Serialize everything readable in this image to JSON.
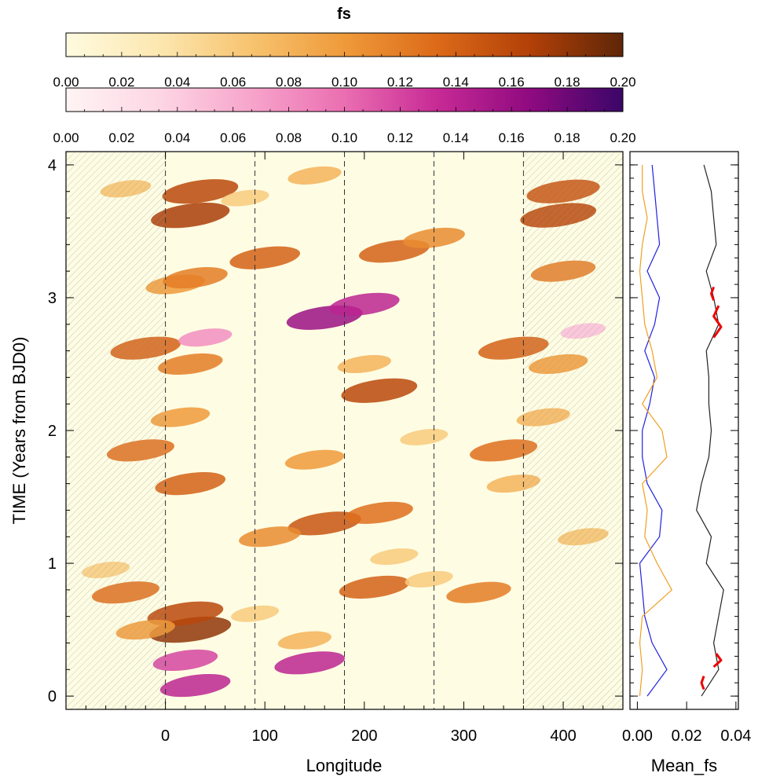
{
  "colorbars": [
    {
      "title": "fs",
      "ticks": [
        "0.00",
        "0.02",
        "0.04",
        "0.06",
        "0.08",
        "0.10",
        "0.12",
        "0.14",
        "0.16",
        "0.18",
        "0.20"
      ],
      "range": [
        0,
        0.2
      ],
      "stops": [
        "#fffbe0",
        "#fce7b0",
        "#f7c36f",
        "#ef9a3a",
        "#dc6a19",
        "#b24008",
        "#5e2608"
      ]
    },
    {
      "title": "",
      "ticks": [
        "0.00",
        "0.02",
        "0.04",
        "0.06",
        "0.08",
        "0.10",
        "0.12",
        "0.14",
        "0.16",
        "0.18",
        "0.20"
      ],
      "range": [
        0,
        0.2
      ],
      "stops": [
        "#fff4f4",
        "#fdd6e4",
        "#f7a4cb",
        "#ea6eb1",
        "#c72a95",
        "#8f0a80",
        "#3a0668"
      ]
    }
  ],
  "chart_data": [
    {
      "type": "heatmap",
      "title": "fs",
      "xlabel": "Longitude",
      "ylabel": "TIME (Years from BJD0)",
      "xlim": [
        -100,
        460
      ],
      "ylim": [
        -0.1,
        4.1
      ],
      "xticks": [
        "0",
        "100",
        "200",
        "300",
        "400"
      ],
      "yticks": [
        "0",
        "1",
        "2",
        "3",
        "4"
      ],
      "xtick_values": [
        0,
        100,
        200,
        300,
        400
      ],
      "ytick_values": [
        0,
        1,
        2,
        3,
        4
      ],
      "dashed_lines_x": [
        0,
        90,
        180,
        270,
        360
      ],
      "hatched_ranges_x": [
        [
          -100,
          0
        ],
        [
          360,
          460
        ]
      ],
      "background_color": "#fefde3",
      "spots": [
        {
          "lon": -40,
          "t": 0.78,
          "value": 0.13,
          "scheme": "orange"
        },
        {
          "lon": 25,
          "t": 0.5,
          "value": 0.18,
          "scheme": "orange"
        },
        {
          "lon": 20,
          "t": 0.62,
          "value": 0.16,
          "scheme": "orange"
        },
        {
          "lon": -20,
          "t": 0.5,
          "value": 0.1,
          "scheme": "orange"
        },
        {
          "lon": 20,
          "t": 0.27,
          "value": 0.12,
          "scheme": "pink"
        },
        {
          "lon": 30,
          "t": 0.08,
          "value": 0.14,
          "scheme": "pink"
        },
        {
          "lon": 145,
          "t": 0.25,
          "value": 0.14,
          "scheme": "pink"
        },
        {
          "lon": 140,
          "t": 0.42,
          "value": 0.08,
          "scheme": "orange"
        },
        {
          "lon": 90,
          "t": 0.62,
          "value": 0.06,
          "scheme": "orange"
        },
        {
          "lon": 210,
          "t": 0.82,
          "value": 0.14,
          "scheme": "orange"
        },
        {
          "lon": 315,
          "t": 0.78,
          "value": 0.12,
          "scheme": "orange"
        },
        {
          "lon": 265,
          "t": 0.88,
          "value": 0.06,
          "scheme": "orange"
        },
        {
          "lon": 230,
          "t": 1.05,
          "value": 0.06,
          "scheme": "orange"
        },
        {
          "lon": 160,
          "t": 1.3,
          "value": 0.15,
          "scheme": "orange"
        },
        {
          "lon": 215,
          "t": 1.38,
          "value": 0.13,
          "scheme": "orange"
        },
        {
          "lon": 105,
          "t": 1.2,
          "value": 0.11,
          "scheme": "orange"
        },
        {
          "lon": 420,
          "t": 1.2,
          "value": 0.07,
          "scheme": "orange"
        },
        {
          "lon": -60,
          "t": 0.95,
          "value": 0.06,
          "scheme": "orange"
        },
        {
          "lon": 25,
          "t": 1.6,
          "value": 0.14,
          "scheme": "orange"
        },
        {
          "lon": 350,
          "t": 1.6,
          "value": 0.08,
          "scheme": "orange"
        },
        {
          "lon": 150,
          "t": 1.78,
          "value": 0.1,
          "scheme": "orange"
        },
        {
          "lon": 260,
          "t": 1.95,
          "value": 0.06,
          "scheme": "orange"
        },
        {
          "lon": -25,
          "t": 1.85,
          "value": 0.13,
          "scheme": "orange"
        },
        {
          "lon": 340,
          "t": 1.85,
          "value": 0.13,
          "scheme": "orange"
        },
        {
          "lon": 15,
          "t": 2.1,
          "value": 0.1,
          "scheme": "orange"
        },
        {
          "lon": 380,
          "t": 2.1,
          "value": 0.08,
          "scheme": "orange"
        },
        {
          "lon": 215,
          "t": 2.3,
          "value": 0.16,
          "scheme": "orange"
        },
        {
          "lon": 200,
          "t": 2.5,
          "value": 0.08,
          "scheme": "orange"
        },
        {
          "lon": -20,
          "t": 2.62,
          "value": 0.14,
          "scheme": "orange"
        },
        {
          "lon": 350,
          "t": 2.62,
          "value": 0.14,
          "scheme": "orange"
        },
        {
          "lon": 25,
          "t": 2.5,
          "value": 0.12,
          "scheme": "orange"
        },
        {
          "lon": 395,
          "t": 2.5,
          "value": 0.1,
          "scheme": "orange"
        },
        {
          "lon": 160,
          "t": 2.85,
          "value": 0.16,
          "scheme": "pink"
        },
        {
          "lon": 200,
          "t": 2.95,
          "value": 0.14,
          "scheme": "pink"
        },
        {
          "lon": 40,
          "t": 2.7,
          "value": 0.08,
          "scheme": "pink"
        },
        {
          "lon": 420,
          "t": 2.75,
          "value": 0.05,
          "scheme": "pink"
        },
        {
          "lon": 10,
          "t": 3.1,
          "value": 0.1,
          "scheme": "orange"
        },
        {
          "lon": 30,
          "t": 3.15,
          "value": 0.12,
          "scheme": "orange"
        },
        {
          "lon": 100,
          "t": 3.3,
          "value": 0.14,
          "scheme": "orange"
        },
        {
          "lon": 230,
          "t": 3.35,
          "value": 0.14,
          "scheme": "orange"
        },
        {
          "lon": 270,
          "t": 3.45,
          "value": 0.11,
          "scheme": "orange"
        },
        {
          "lon": 400,
          "t": 3.2,
          "value": 0.12,
          "scheme": "orange"
        },
        {
          "lon": 25,
          "t": 3.62,
          "value": 0.17,
          "scheme": "orange"
        },
        {
          "lon": 395,
          "t": 3.62,
          "value": 0.16,
          "scheme": "orange"
        },
        {
          "lon": 35,
          "t": 3.8,
          "value": 0.16,
          "scheme": "orange"
        },
        {
          "lon": 400,
          "t": 3.8,
          "value": 0.15,
          "scheme": "orange"
        },
        {
          "lon": 150,
          "t": 3.92,
          "value": 0.08,
          "scheme": "orange"
        },
        {
          "lon": -40,
          "t": 3.82,
          "value": 0.07,
          "scheme": "orange"
        },
        {
          "lon": 80,
          "t": 3.75,
          "value": 0.06,
          "scheme": "orange"
        }
      ]
    },
    {
      "type": "line",
      "xlabel": "Mean_fs",
      "xticks": [
        "0.00",
        "0.02",
        "0.04"
      ],
      "xtick_values": [
        0,
        0.02,
        0.04
      ],
      "xlim": [
        -0.003,
        0.041
      ],
      "ylim": [
        -0.1,
        4.1
      ],
      "series": [
        {
          "name": "blue",
          "color": "#2020e0",
          "t": [
            0.0,
            0.2,
            0.4,
            0.6,
            0.8,
            1.0,
            1.2,
            1.4,
            1.6,
            1.8,
            2.0,
            2.2,
            2.4,
            2.6,
            2.8,
            3.0,
            3.2,
            3.4,
            3.6,
            3.8,
            4.0
          ],
          "values": [
            0.004,
            0.012,
            0.006,
            0.003,
            0.002,
            0.001,
            0.009,
            0.01,
            0.004,
            0.002,
            0.002,
            0.005,
            0.007,
            0.003,
            0.007,
            0.009,
            0.004,
            0.009,
            0.008,
            0.007,
            0.006
          ]
        },
        {
          "name": "orange",
          "color": "#f0a020",
          "t": [
            0.0,
            0.2,
            0.4,
            0.6,
            0.8,
            1.0,
            1.2,
            1.4,
            1.6,
            1.8,
            2.0,
            2.2,
            2.4,
            2.6,
            2.8,
            3.0,
            3.2,
            3.4,
            3.6,
            3.8,
            4.0
          ],
          "values": [
            0.001,
            0.002,
            0.001,
            0.002,
            0.014,
            0.008,
            0.003,
            0.004,
            0.002,
            0.012,
            0.01,
            0.002,
            0.008,
            0.006,
            0.003,
            0.002,
            0.001,
            0.002,
            0.004,
            0.002,
            0.002
          ]
        },
        {
          "name": "black",
          "color": "#222222",
          "t": [
            0.0,
            0.2,
            0.4,
            0.6,
            0.8,
            1.0,
            1.2,
            1.4,
            1.6,
            1.8,
            2.0,
            2.2,
            2.4,
            2.6,
            2.8,
            3.0,
            3.2,
            3.4,
            3.6,
            3.8,
            4.0
          ],
          "values": [
            0.026,
            0.033,
            0.031,
            0.033,
            0.035,
            0.028,
            0.03,
            0.024,
            0.026,
            0.029,
            0.03,
            0.029,
            0.029,
            0.028,
            0.033,
            0.031,
            0.028,
            0.032,
            0.031,
            0.03,
            0.027
          ]
        },
        {
          "name": "red",
          "color": "#ee0000",
          "segments": [
            {
              "t": [
                0.05,
                0.1,
                0.15
              ],
              "values": [
                0.027,
                0.026,
                0.027
              ]
            },
            {
              "t": [
                0.22,
                0.27,
                0.32
              ],
              "values": [
                0.031,
                0.034,
                0.032
              ]
            },
            {
              "t": [
                2.7,
                2.78,
                2.86,
                2.94
              ],
              "values": [
                0.031,
                0.034,
                0.031,
                0.033
              ]
            },
            {
              "t": [
                2.98,
                3.03,
                3.08
              ],
              "values": [
                0.031,
                0.03,
                0.031
              ]
            }
          ]
        }
      ]
    }
  ]
}
